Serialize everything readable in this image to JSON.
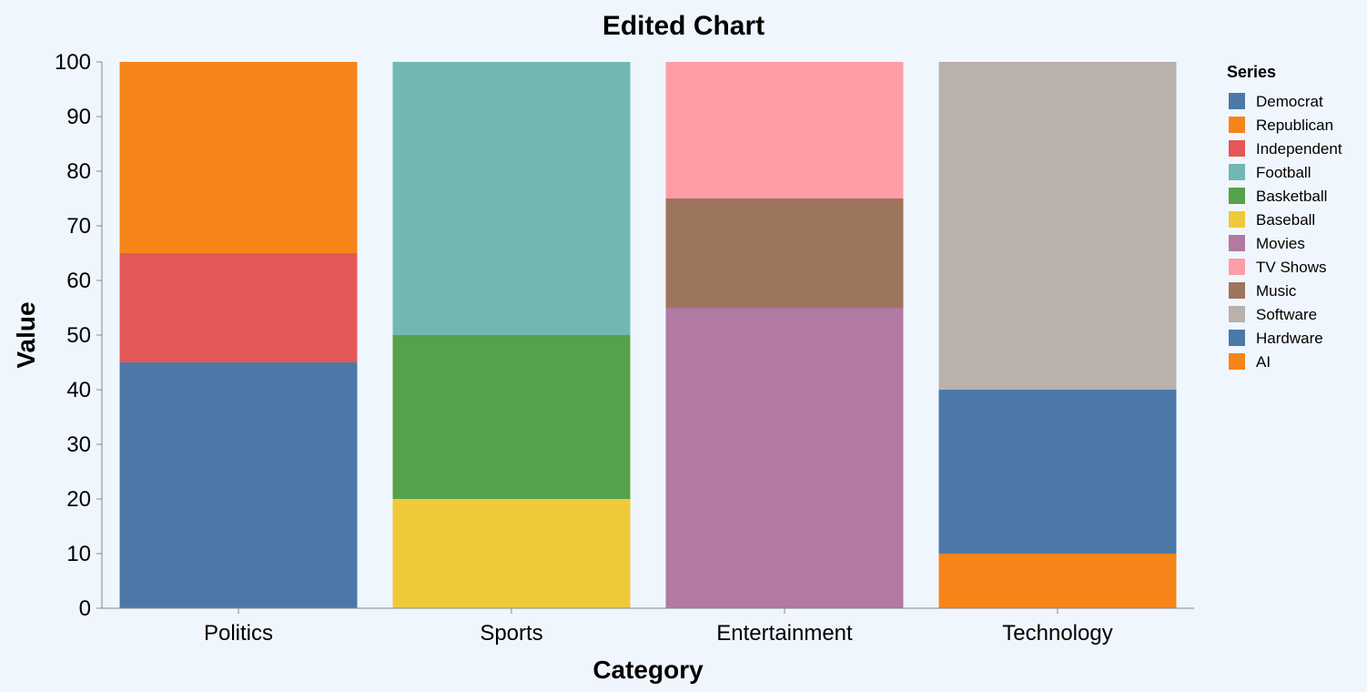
{
  "chart_data": {
    "type": "bar",
    "stacked": true,
    "title": "Edited Chart",
    "xlabel": "Category",
    "ylabel": "Value",
    "ylim": [
      0,
      100
    ],
    "yticks": [
      0,
      10,
      20,
      30,
      40,
      50,
      60,
      70,
      80,
      90,
      100
    ],
    "categories": [
      "Politics",
      "Sports",
      "Entertainment",
      "Technology"
    ],
    "legend": {
      "title": "Series",
      "position": "right"
    },
    "series": [
      {
        "name": "Democrat",
        "color": "#4c78a8",
        "values": [
          45,
          0,
          0,
          0
        ]
      },
      {
        "name": "Republican",
        "color": "#f58518",
        "values": [
          35,
          0,
          0,
          0
        ]
      },
      {
        "name": "Independent",
        "color": "#e45756",
        "values": [
          20,
          0,
          0,
          0
        ]
      },
      {
        "name": "Football",
        "color": "#72b7b2",
        "values": [
          0,
          50,
          0,
          0
        ]
      },
      {
        "name": "Basketball",
        "color": "#54a24b",
        "values": [
          0,
          30,
          0,
          0
        ]
      },
      {
        "name": "Baseball",
        "color": "#eeca3b",
        "values": [
          0,
          20,
          0,
          0
        ]
      },
      {
        "name": "Movies",
        "color": "#b279a2",
        "values": [
          0,
          0,
          55,
          0
        ]
      },
      {
        "name": "TV Shows",
        "color": "#ff9da6",
        "values": [
          0,
          0,
          25,
          0
        ]
      },
      {
        "name": "Music",
        "color": "#9d755d",
        "values": [
          0,
          0,
          20,
          0
        ]
      },
      {
        "name": "Software",
        "color": "#bab0ac",
        "values": [
          0,
          0,
          0,
          60
        ]
      },
      {
        "name": "Hardware",
        "color": "#4c78a8",
        "values": [
          0,
          0,
          0,
          30
        ]
      },
      {
        "name": "AI",
        "color": "#f58518",
        "values": [
          0,
          0,
          0,
          10
        ]
      }
    ],
    "stack_order": [
      [
        "Democrat",
        "Independent",
        "Republican"
      ],
      [
        "Baseball",
        "Basketball",
        "Football"
      ],
      [
        "Movies",
        "Music",
        "TV Shows"
      ],
      [
        "AI",
        "Hardware",
        "Software"
      ]
    ]
  }
}
